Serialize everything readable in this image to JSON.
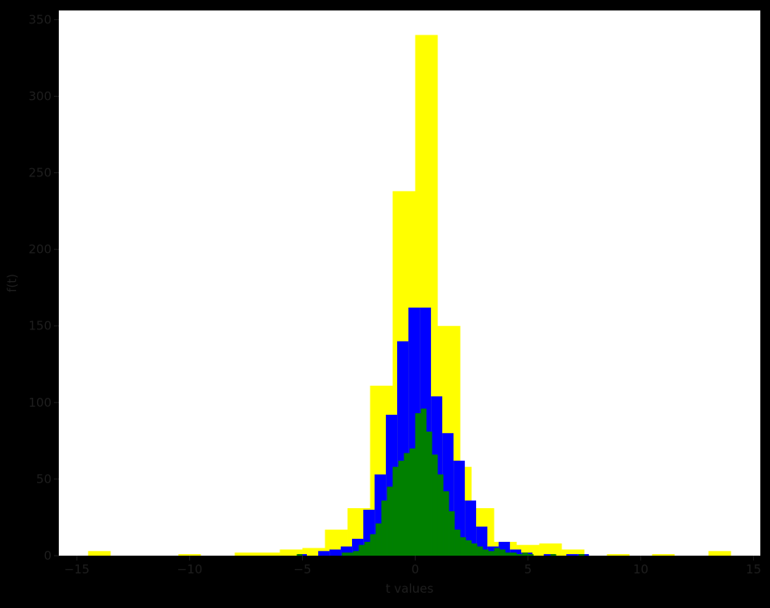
{
  "chart_data": {
    "type": "bar",
    "title": "",
    "xlabel": "t values",
    "ylabel": "f(t)",
    "xlim": [
      -15.8,
      15.3
    ],
    "ylim": [
      0,
      356
    ],
    "xticks": [
      -15,
      -10,
      -5,
      0,
      5,
      10,
      15
    ],
    "xtick_labels": [
      "−15",
      "−10",
      "−5",
      "0",
      "5",
      "10",
      "15"
    ],
    "yticks": [
      0,
      50,
      100,
      150,
      200,
      250,
      300,
      350
    ],
    "ytick_labels": [
      "0",
      "50",
      "100",
      "150",
      "200",
      "250",
      "300",
      "350"
    ],
    "grid": false,
    "background": "#ffffff",
    "page_background": "#000000",
    "series": [
      {
        "color": "#ffff00",
        "bins": [
          [
            -14.5,
            -13.5,
            3
          ],
          [
            -10.5,
            -9.5,
            1
          ],
          [
            -8,
            -6,
            2
          ],
          [
            -6,
            -5,
            4
          ],
          [
            -5,
            -4,
            5
          ],
          [
            -4,
            -3,
            17
          ],
          [
            -3,
            -2,
            31
          ],
          [
            -2,
            -1,
            111
          ],
          [
            -1,
            0,
            238
          ],
          [
            0,
            1,
            340
          ],
          [
            1,
            2,
            150
          ],
          [
            2,
            2.5,
            58
          ],
          [
            2.5,
            3.5,
            31
          ],
          [
            3.5,
            4.5,
            9
          ],
          [
            4.5,
            5.5,
            7
          ],
          [
            5.5,
            6.5,
            8
          ],
          [
            6.5,
            7.5,
            4
          ],
          [
            8.5,
            9.5,
            1
          ],
          [
            10.5,
            11.5,
            1
          ],
          [
            13,
            14,
            3
          ]
        ]
      },
      {
        "color": "#0000ff",
        "bins": [
          [
            -5.2,
            -4.8,
            1
          ],
          [
            -4.3,
            -3.8,
            3
          ],
          [
            -3.8,
            -3.3,
            4
          ],
          [
            -3.3,
            -2.8,
            6
          ],
          [
            -2.8,
            -2.3,
            11
          ],
          [
            -2.3,
            -1.8,
            30
          ],
          [
            -1.8,
            -1.3,
            53
          ],
          [
            -1.3,
            -0.8,
            92
          ],
          [
            -0.8,
            -0.3,
            140
          ],
          [
            -0.3,
            0.2,
            162
          ],
          [
            0.2,
            0.7,
            162
          ],
          [
            0.7,
            1.2,
            104
          ],
          [
            1.2,
            1.7,
            80
          ],
          [
            1.7,
            2.2,
            62
          ],
          [
            2.2,
            2.7,
            36
          ],
          [
            2.7,
            3.2,
            19
          ],
          [
            3.2,
            3.7,
            6
          ],
          [
            3.7,
            4.2,
            9
          ],
          [
            4.2,
            4.7,
            4
          ],
          [
            4.7,
            5.2,
            2
          ],
          [
            5.7,
            6.2,
            1
          ],
          [
            6.7,
            7.2,
            1
          ],
          [
            7.2,
            7.7,
            1
          ]
        ]
      },
      {
        "color": "#008000",
        "bins": [
          [
            -5.25,
            -5,
            1
          ],
          [
            -3.25,
            -3,
            2
          ],
          [
            -3,
            -2.75,
            2
          ],
          [
            -2.75,
            -2.5,
            3
          ],
          [
            -2.5,
            -2.25,
            7
          ],
          [
            -2.25,
            -2,
            9
          ],
          [
            -2,
            -1.75,
            14
          ],
          [
            -1.75,
            -1.5,
            21
          ],
          [
            -1.5,
            -1.25,
            36
          ],
          [
            -1.25,
            -1,
            45
          ],
          [
            -1,
            -0.75,
            58
          ],
          [
            -0.75,
            -0.5,
            62
          ],
          [
            -0.5,
            -0.25,
            67
          ],
          [
            -0.25,
            0,
            70
          ],
          [
            0,
            0.25,
            93
          ],
          [
            0.25,
            0.5,
            96
          ],
          [
            0.5,
            0.75,
            81
          ],
          [
            0.75,
            1,
            66
          ],
          [
            1,
            1.25,
            53
          ],
          [
            1.25,
            1.5,
            42
          ],
          [
            1.5,
            1.75,
            29
          ],
          [
            1.75,
            2,
            17
          ],
          [
            2,
            2.25,
            12
          ],
          [
            2.25,
            2.5,
            10
          ],
          [
            2.5,
            2.75,
            8
          ],
          [
            2.75,
            3,
            6
          ],
          [
            3,
            3.25,
            4
          ],
          [
            3.25,
            3.5,
            3
          ],
          [
            3.5,
            3.75,
            5
          ],
          [
            3.75,
            4,
            4
          ],
          [
            4,
            4.25,
            2
          ],
          [
            4.25,
            4.5,
            2
          ],
          [
            4.5,
            4.75,
            1
          ],
          [
            4.75,
            5,
            2
          ],
          [
            5,
            5.25,
            1
          ],
          [
            6,
            6.25,
            1
          ],
          [
            7.25,
            7.5,
            1
          ]
        ]
      }
    ]
  }
}
